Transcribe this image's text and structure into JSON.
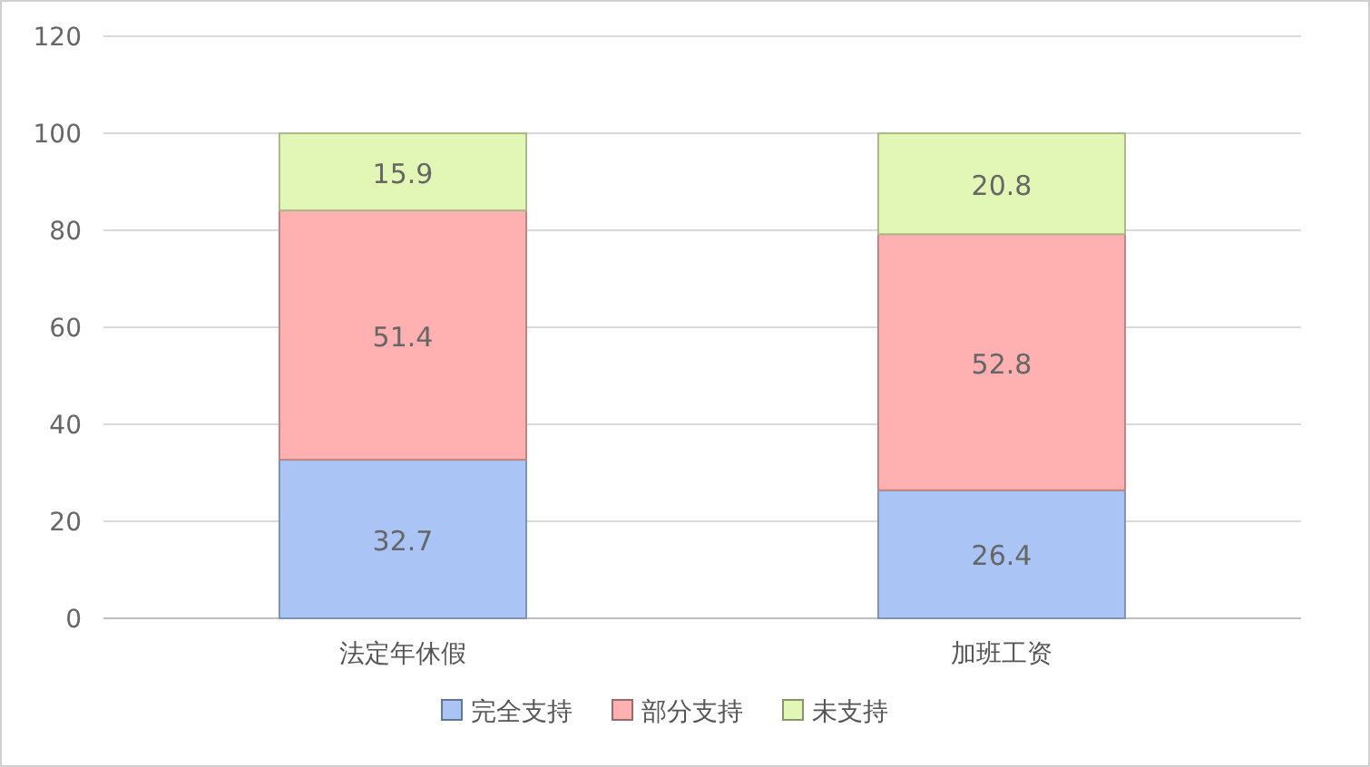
{
  "chart_data": {
    "type": "bar",
    "stacked": true,
    "categories": [
      "法定年休假",
      "加班工资"
    ],
    "series": [
      {
        "name": "完全支持",
        "color": "#a9c4f5",
        "values": [
          32.7,
          26.4
        ]
      },
      {
        "name": "部分支持",
        "color": "#ffb0b0",
        "values": [
          51.4,
          52.8
        ]
      },
      {
        "name": "未支持",
        "color": "#e2f7b5",
        "values": [
          15.9,
          20.8
        ]
      }
    ],
    "ylim": [
      0,
      120
    ],
    "yticks": [
      0,
      20,
      40,
      60,
      80,
      100,
      120
    ],
    "grid": "y",
    "legend": "bottom",
    "data_labels": true
  }
}
